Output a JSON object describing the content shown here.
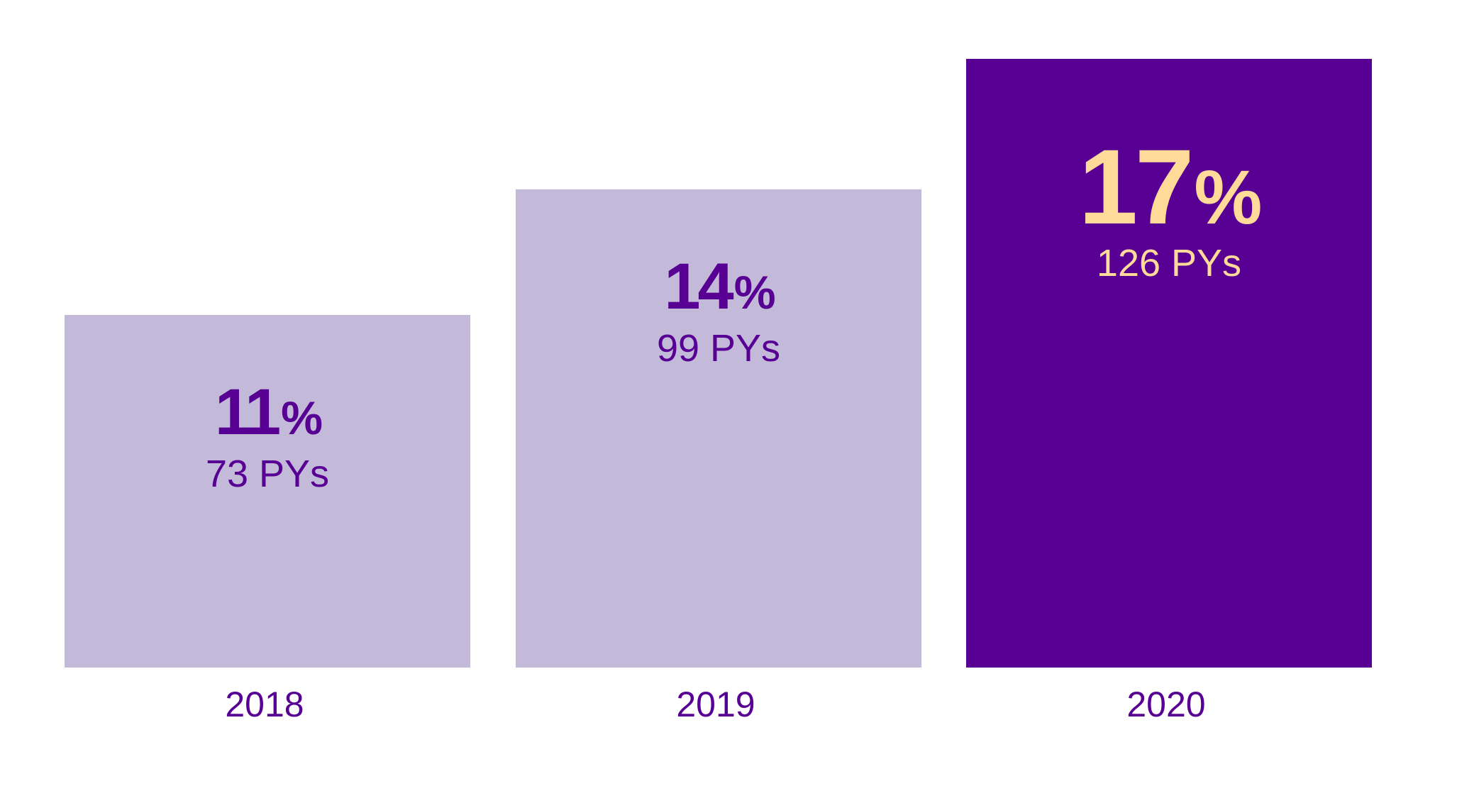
{
  "chart_data": {
    "type": "bar",
    "categories": [
      "2018",
      "2019",
      "2020"
    ],
    "values": [
      73,
      99,
      126
    ],
    "value_labels": [
      "73 PYs",
      "99 PYs",
      "126 PYs"
    ],
    "percent_labels": [
      "11%",
      "14%",
      "17%"
    ],
    "title": "",
    "xlabel": "",
    "ylabel": "",
    "ylim": [
      0,
      126
    ],
    "grid": false,
    "highlight_index": 2,
    "colors": {
      "bar": "#C3B9D8",
      "bar_highlight": "#570093",
      "label": "#570093",
      "label_highlight": "#FFDA99",
      "axis_text": "#570093"
    }
  }
}
